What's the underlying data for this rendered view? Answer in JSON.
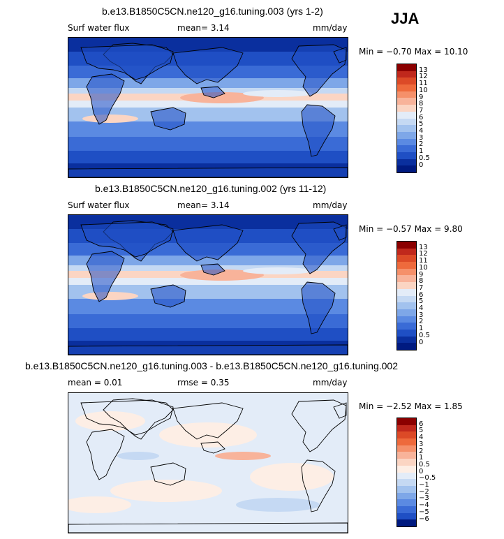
{
  "season": "JJA",
  "panels": [
    {
      "title": "b.e13.B1850C5CN.ne120_g16.tuning.003 (yrs 1-2)",
      "variable": "Surf water flux",
      "stat_text": "mean=   3.14",
      "units": "mm/day",
      "minmax": "Min =  −0.70  Max =   10.10",
      "colorbar": {
        "labels": [
          "13",
          "12",
          "11",
          "10",
          "9",
          "8",
          "7",
          "6",
          "5",
          "4",
          "3",
          "2",
          "1",
          "0.5",
          "0"
        ],
        "colors": [
          "#8b0000",
          "#c0281c",
          "#dc4a27",
          "#ee6a3c",
          "#f5906a",
          "#f8b39a",
          "#fbd5c3",
          "#e3ecf8",
          "#c5d9f3",
          "#a2c2ee",
          "#7ea7e8",
          "#5b8ae2",
          "#3a6bd6",
          "#1f4fc4",
          "#0a2f9e",
          "#001a80"
        ]
      },
      "map_style": "precip"
    },
    {
      "title": "b.e13.B1850C5CN.ne120_g16.tuning.002 (yrs 11-12)",
      "variable": "Surf water flux",
      "stat_text": "mean=   3.14",
      "units": "mm/day",
      "minmax": "Min =  −0.57  Max =    9.80",
      "colorbar": {
        "labels": [
          "13",
          "12",
          "11",
          "10",
          "9",
          "8",
          "7",
          "6",
          "5",
          "4",
          "3",
          "2",
          "1",
          "0.5",
          "0"
        ],
        "colors": [
          "#8b0000",
          "#c0281c",
          "#dc4a27",
          "#ee6a3c",
          "#f5906a",
          "#f8b39a",
          "#fbd5c3",
          "#e3ecf8",
          "#c5d9f3",
          "#a2c2ee",
          "#7ea7e8",
          "#5b8ae2",
          "#3a6bd6",
          "#1f4fc4",
          "#0a2f9e",
          "#001a80"
        ]
      },
      "map_style": "precip"
    },
    {
      "title": "b.e13.B1850C5CN.ne120_g16.tuning.003 - b.e13.B1850C5CN.ne120_g16.tuning.002",
      "stat_text": "mean =   0.01",
      "stat2_text": "rmse =   0.35",
      "units": "mm/day",
      "minmax": "Min =  −2.52  Max =    1.85",
      "colorbar": {
        "labels": [
          "6",
          "5",
          "4",
          "3",
          "2",
          "1",
          "0.5",
          "0",
          "−0.5",
          "−1",
          "−2",
          "−3",
          "−4",
          "−5",
          "−6"
        ],
        "colors": [
          "#8b0000",
          "#c0281c",
          "#dc4a27",
          "#ee6a3c",
          "#f5906a",
          "#f8b39a",
          "#fbd5c3",
          "#fdeee5",
          "#e3ecf8",
          "#c5d9f3",
          "#a2c2ee",
          "#7ea7e8",
          "#5b8ae2",
          "#3a6bd6",
          "#1f4fc4",
          "#001a80"
        ]
      },
      "map_style": "diff"
    }
  ],
  "chart_data": [
    {
      "type": "heatmap",
      "title": "b.e13.B1850C5CN.ne120_g16.tuning.003 (yrs 1-2)",
      "variable": "Surf water flux",
      "units": "mm/day",
      "mean": 3.14,
      "min": -0.7,
      "max": 10.1,
      "levels": [
        0,
        0.5,
        1,
        2,
        3,
        4,
        5,
        6,
        7,
        8,
        9,
        10,
        11,
        12,
        13
      ]
    },
    {
      "type": "heatmap",
      "title": "b.e13.B1850C5CN.ne120_g16.tuning.002 (yrs 11-12)",
      "variable": "Surf water flux",
      "units": "mm/day",
      "mean": 3.14,
      "min": -0.57,
      "max": 9.8,
      "levels": [
        0,
        0.5,
        1,
        2,
        3,
        4,
        5,
        6,
        7,
        8,
        9,
        10,
        11,
        12,
        13
      ]
    },
    {
      "type": "heatmap",
      "title": "b.e13.B1850C5CN.ne120_g16.tuning.003 - b.e13.B1850C5CN.ne120_g16.tuning.002",
      "units": "mm/day",
      "mean": 0.01,
      "rmse": 0.35,
      "min": -2.52,
      "max": 1.85,
      "levels": [
        -6,
        -5,
        -4,
        -3,
        -2,
        -1,
        -0.5,
        0,
        0.5,
        1,
        2,
        3,
        4,
        5,
        6
      ]
    }
  ]
}
